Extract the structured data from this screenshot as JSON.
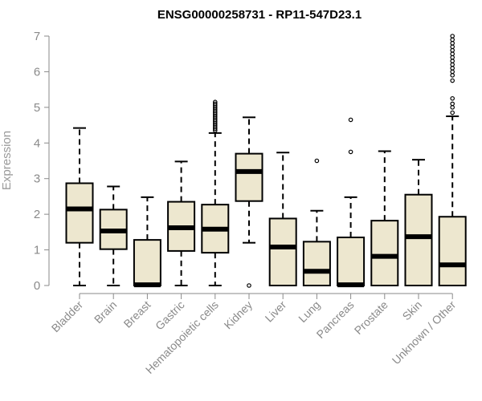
{
  "chart_data": {
    "type": "boxplot",
    "title": "ENSG00000258731 - RP11-547D23.1",
    "xlabel": "",
    "ylabel": "Expression",
    "ylim": [
      0,
      7
    ],
    "yticks": [
      0,
      1,
      2,
      3,
      4,
      5,
      6,
      7
    ],
    "grid": false,
    "box_fill": "#ede7cf",
    "box_stroke": "#000000",
    "categories": [
      "Bladder",
      "Brain",
      "Breast",
      "Gastric",
      "Hematopoietic cells",
      "Kidney",
      "Liver",
      "Lung",
      "Pancreas",
      "Prostate",
      "Skin",
      "Unknown / Other"
    ],
    "boxes": [
      {
        "min": 0,
        "q1": 1.2,
        "median": 2.15,
        "q3": 2.87,
        "max": 4.42,
        "outliers": []
      },
      {
        "min": 0,
        "q1": 1.02,
        "median": 1.53,
        "q3": 2.13,
        "max": 2.78,
        "outliers": []
      },
      {
        "min": 0,
        "q1": 0,
        "median": 0.02,
        "q3": 1.28,
        "max": 2.48,
        "outliers": []
      },
      {
        "min": 0,
        "q1": 0.97,
        "median": 1.62,
        "q3": 2.35,
        "max": 3.48,
        "outliers": []
      },
      {
        "min": 0,
        "q1": 0.92,
        "median": 1.58,
        "q3": 2.27,
        "max": 4.28,
        "outliers": [
          4.35,
          4.4,
          4.45,
          4.5,
          4.55,
          4.6,
          4.65,
          4.7,
          4.75,
          4.8,
          4.85,
          4.9,
          4.95,
          5.0,
          5.05,
          5.1,
          5.15
        ]
      },
      {
        "min": 1.2,
        "q1": 2.37,
        "median": 3.2,
        "q3": 3.7,
        "max": 4.72,
        "outliers": [
          0
        ]
      },
      {
        "min": 0,
        "q1": 0,
        "median": 1.08,
        "q3": 1.88,
        "max": 3.73,
        "outliers": []
      },
      {
        "min": 0,
        "q1": 0,
        "median": 0.4,
        "q3": 1.23,
        "max": 2.1,
        "outliers": [
          3.5
        ]
      },
      {
        "min": 0,
        "q1": 0,
        "median": 0.02,
        "q3": 1.35,
        "max": 2.48,
        "outliers": [
          3.75,
          4.65
        ]
      },
      {
        "min": 0,
        "q1": 0,
        "median": 0.82,
        "q3": 1.82,
        "max": 3.77,
        "outliers": []
      },
      {
        "min": 0,
        "q1": 0,
        "median": 1.37,
        "q3": 2.55,
        "max": 3.53,
        "outliers": []
      },
      {
        "min": 0,
        "q1": 0,
        "median": 0.58,
        "q3": 1.93,
        "max": 4.75,
        "outliers": [
          4.85,
          5.0,
          5.1,
          5.25,
          5.75,
          5.9,
          6.0,
          6.1,
          6.2,
          6.3,
          6.4,
          6.5,
          6.6,
          6.7,
          6.8,
          6.9,
          7.0
        ]
      }
    ]
  }
}
